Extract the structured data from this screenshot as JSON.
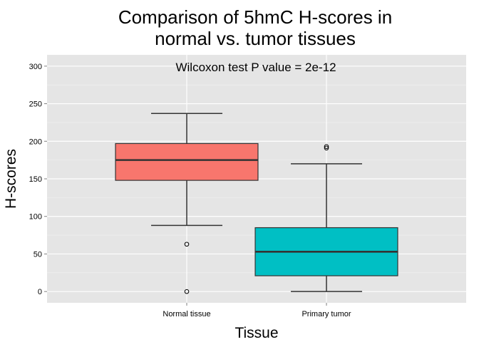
{
  "chart_data": {
    "type": "boxplot",
    "title_lines": [
      "Comparison of 5hmC H-scores in",
      "normal vs. tumor tissues"
    ],
    "annotation": "Wilcoxon test P value = 2e-12",
    "xlabel": "Tissue",
    "ylabel": "H-scores",
    "ylim": [
      -15,
      315
    ],
    "yticks": [
      0,
      50,
      100,
      150,
      200,
      250,
      300
    ],
    "grid": true,
    "legend": "none",
    "categories": [
      "Normal tissue",
      "Primary tumor"
    ],
    "boxes": [
      {
        "category": "Normal tissue",
        "whisker_low": 88,
        "q1": 148,
        "median": 175,
        "q3": 197,
        "whisker_high": 237,
        "outliers": [
          63,
          0
        ],
        "color": "#F8766D"
      },
      {
        "category": "Primary tumor",
        "whisker_low": 0,
        "q1": 21,
        "median": 53,
        "q3": 85,
        "whisker_high": 170,
        "outliers": [
          193,
          191
        ],
        "color": "#00BFC4"
      }
    ],
    "colors": {
      "panel": "#E5E5E5",
      "grid": "#FFFFFF",
      "outline": "#333333",
      "text": "#000000",
      "tick_text": "#000000"
    }
  }
}
